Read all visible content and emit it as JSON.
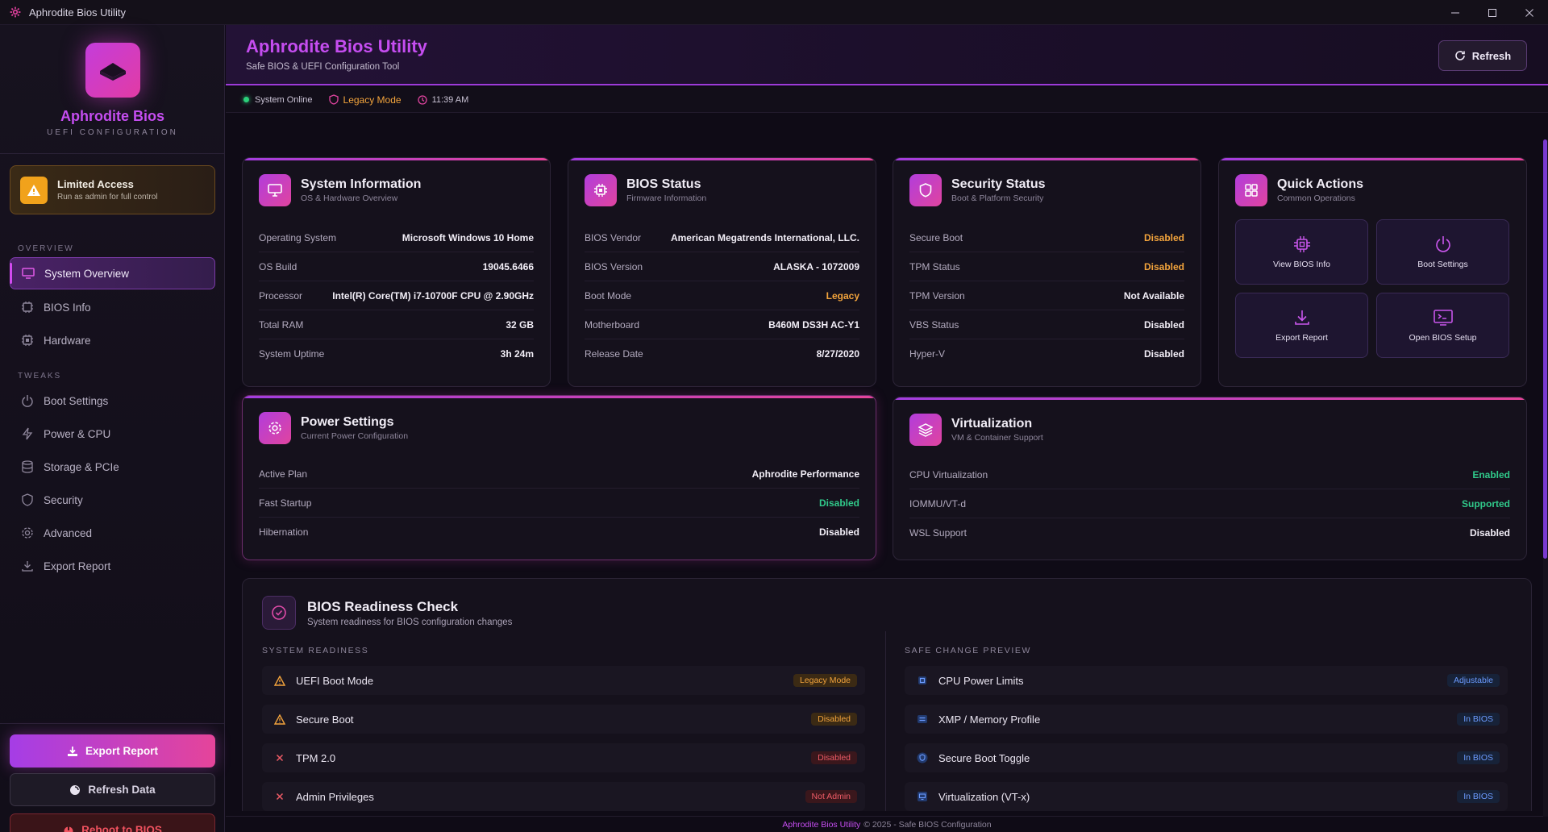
{
  "window": {
    "title": "Aphrodite Bios Utility"
  },
  "sidebar": {
    "brand_name": "Aphrodite Bios",
    "brand_sub": "UEFI CONFIGURATION",
    "limited_title": "Limited Access",
    "limited_sub": "Run as admin for full control",
    "overview_label": "OVERVIEW",
    "tweaks_label": "TWEAKS",
    "overview_items": [
      {
        "label": "System Overview",
        "icon": "dashboard-icon"
      },
      {
        "label": "BIOS Info",
        "icon": "chip-icon"
      },
      {
        "label": "Hardware",
        "icon": "cpu-icon"
      }
    ],
    "tweak_items": [
      {
        "label": "Boot Settings",
        "icon": "power-icon"
      },
      {
        "label": "Power & CPU",
        "icon": "bolt-icon"
      },
      {
        "label": "Storage & PCIe",
        "icon": "database-icon"
      },
      {
        "label": "Security",
        "icon": "shield-icon"
      },
      {
        "label": "Advanced",
        "icon": "gear-icon"
      },
      {
        "label": "Export Report",
        "icon": "download-icon"
      }
    ],
    "export_label": "Export Report",
    "refresh_label": "Refresh Data",
    "reboot_label": "Reboot to BIOS"
  },
  "header": {
    "title": "Aphrodite Bios Utility",
    "subtitle": "Safe BIOS & UEFI Configuration Tool",
    "refresh_label": "Refresh"
  },
  "status": {
    "online": "System Online",
    "mode": "Legacy Mode",
    "time": "11:39 AM"
  },
  "system_info": {
    "title": "System Information",
    "subtitle": "OS & Hardware Overview",
    "rows": [
      {
        "k": "Operating System",
        "v": "Microsoft Windows 10 Home"
      },
      {
        "k": "OS Build",
        "v": "19045.6466"
      },
      {
        "k": "Processor",
        "v": "Intel(R) Core(TM) i7-10700F CPU @ 2.90GHz"
      },
      {
        "k": "Total RAM",
        "v": "32 GB"
      },
      {
        "k": "System Uptime",
        "v": "3h 24m"
      }
    ]
  },
  "bios_status": {
    "title": "BIOS Status",
    "subtitle": "Firmware Information",
    "rows": [
      {
        "k": "BIOS Vendor",
        "v": "American Megatrends International, LLC."
      },
      {
        "k": "BIOS Version",
        "v": "ALASKA - 1072009"
      },
      {
        "k": "Boot Mode",
        "v": "Legacy"
      },
      {
        "k": "Motherboard",
        "v": "B460M DS3H AC-Y1"
      },
      {
        "k": "Release Date",
        "v": "8/27/2020"
      }
    ]
  },
  "security_status": {
    "title": "Security Status",
    "subtitle": "Boot & Platform Security",
    "rows": [
      {
        "k": "Secure Boot",
        "v": "Disabled"
      },
      {
        "k": "TPM Status",
        "v": "Disabled"
      },
      {
        "k": "TPM Version",
        "v": "Not Available"
      },
      {
        "k": "VBS Status",
        "v": "Disabled"
      },
      {
        "k": "Hyper-V",
        "v": "Disabled"
      }
    ]
  },
  "quick_actions": {
    "title": "Quick Actions",
    "subtitle": "Common Operations",
    "items": [
      {
        "label": "View BIOS Info",
        "icon": "chip-icon"
      },
      {
        "label": "Boot Settings",
        "icon": "power-icon"
      },
      {
        "label": "Export Report",
        "icon": "download-icon"
      },
      {
        "label": "Open BIOS Setup",
        "icon": "terminal-icon"
      }
    ]
  },
  "power_settings": {
    "title": "Power Settings",
    "subtitle": "Current Power Configuration",
    "rows": [
      {
        "k": "Active Plan",
        "v": "Aphrodite Performance"
      },
      {
        "k": "Fast Startup",
        "v": "Disabled"
      },
      {
        "k": "Hibernation",
        "v": "Disabled"
      }
    ]
  },
  "virtualization": {
    "title": "Virtualization",
    "subtitle": "VM & Container Support",
    "rows": [
      {
        "k": "CPU Virtualization",
        "v": "Enabled"
      },
      {
        "k": "IOMMU/VT-d",
        "v": "Supported"
      },
      {
        "k": "WSL Support",
        "v": "Disabled"
      }
    ]
  },
  "readiness": {
    "title": "BIOS Readiness Check",
    "subtitle": "System readiness for BIOS configuration changes",
    "left_label": "SYSTEM READINESS",
    "right_label": "SAFE CHANGE PREVIEW",
    "left_items": [
      {
        "label": "UEFI Boot Mode",
        "badge": "Legacy Mode"
      },
      {
        "label": "Secure Boot",
        "badge": "Disabled"
      },
      {
        "label": "TPM 2.0",
        "badge": "Disabled"
      },
      {
        "label": "Admin Privileges",
        "badge": "Not Admin"
      }
    ],
    "right_items": [
      {
        "label": "CPU Power Limits",
        "badge": "Adjustable"
      },
      {
        "label": "XMP / Memory Profile",
        "badge": "In BIOS"
      },
      {
        "label": "Secure Boot Toggle",
        "badge": "In BIOS"
      },
      {
        "label": "Virtualization (VT-x)",
        "badge": "In BIOS"
      }
    ]
  },
  "footer": {
    "brand": "Aphrodite Bios Utility",
    "text": "© 2025 - Safe BIOS Configuration"
  },
  "colors": {
    "accent": "#c54df0",
    "pink": "#e5449a",
    "warning": "#f3a43c",
    "success": "#30c98a",
    "danger": "#ee5b66"
  }
}
